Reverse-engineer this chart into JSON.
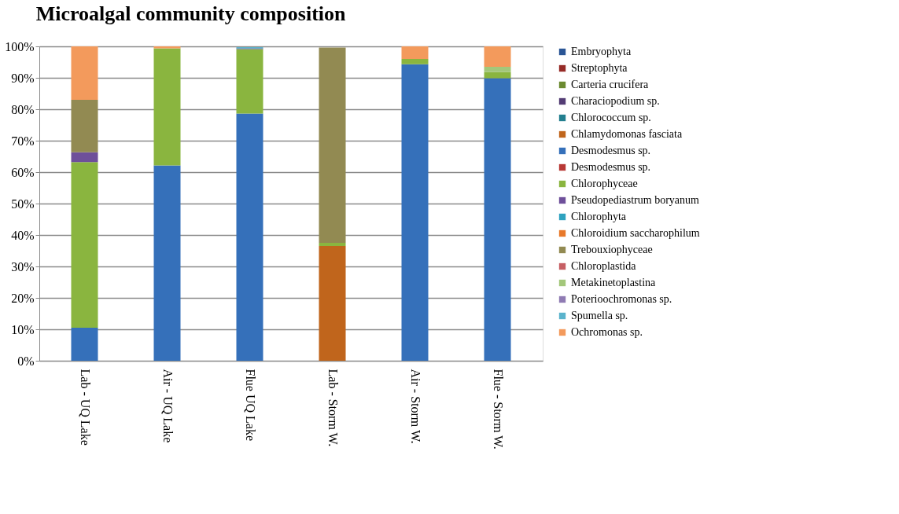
{
  "chart_data": {
    "type": "bar",
    "title": "Microalgal community composition",
    "stacked": true,
    "categories": [
      "Lab - UQ Lake",
      "Air - UQ Lake",
      "Flue UQ Lake",
      "Lab - Storm W.",
      "Air - Storm W.",
      "Flue - Storm W."
    ],
    "ylim": [
      0,
      100
    ],
    "yticks": [
      {
        "value": 0,
        "label": "0%"
      },
      {
        "value": 10,
        "label": "10%"
      },
      {
        "value": 20,
        "label": "20%"
      },
      {
        "value": 30,
        "label": "30%"
      },
      {
        "value": 40,
        "label": "40%"
      },
      {
        "value": 50,
        "label": "50%"
      },
      {
        "value": 60,
        "label": "60%"
      },
      {
        "value": 70,
        "label": "70%"
      },
      {
        "value": 80,
        "label": "80%"
      },
      {
        "value": 90,
        "label": "90%"
      },
      {
        "value": 100,
        "label": "100%"
      }
    ],
    "grid": "y",
    "legend": "right",
    "series": [
      {
        "name": "Embryophyta",
        "color": "#2a5595",
        "values": [
          0,
          0,
          0,
          0,
          0,
          0
        ]
      },
      {
        "name": "Streptophyta",
        "color": "#962b27",
        "values": [
          0,
          0,
          0,
          0,
          0,
          0
        ]
      },
      {
        "name": "Carteria crucifera",
        "color": "#6b8a30",
        "values": [
          0,
          0,
          0,
          0,
          0,
          0
        ]
      },
      {
        "name": "Characiopodium sp.",
        "color": "#533c74",
        "values": [
          0,
          0,
          0,
          0,
          0,
          0
        ]
      },
      {
        "name": "Chlorococcum sp.",
        "color": "#237f8f",
        "values": [
          0,
          0,
          0,
          0,
          0,
          0
        ]
      },
      {
        "name": "Chlamydomonas fasciata",
        "color": "#c0651c",
        "values": [
          0,
          0,
          0,
          36.5,
          0,
          0
        ]
      },
      {
        "name": "Desmodesmus sp.",
        "color": "#3570ba",
        "values": [
          10.5,
          62.1,
          78.6,
          0,
          94.3,
          89.9
        ]
      },
      {
        "name": "Desmodesmus sp.",
        "color": "#b83835",
        "values": [
          0,
          0,
          0,
          0,
          0,
          0
        ]
      },
      {
        "name": "Chlorophyceae",
        "color": "#8ab53f",
        "values": [
          52.7,
          37.3,
          20.5,
          1.0,
          1.7,
          1.9
        ]
      },
      {
        "name": "Pseudopediastrum boryanum",
        "color": "#6e4f9a",
        "values": [
          3.1,
          0,
          0.3,
          0,
          0,
          0
        ]
      },
      {
        "name": "Chlorophyta",
        "color": "#2ea2bf",
        "values": [
          0,
          0,
          0.3,
          0,
          0,
          0
        ]
      },
      {
        "name": "Chloroidium saccharophilum",
        "color": "#e8792a",
        "values": [
          0,
          0,
          0,
          0,
          0,
          0
        ]
      },
      {
        "name": "Trebouxiophyceae",
        "color": "#928a52",
        "values": [
          16.7,
          0,
          null,
          62.1,
          0,
          0
        ]
      },
      {
        "name": "Chloroplastida",
        "color": "#c65f64",
        "values": [
          0,
          0,
          0,
          0,
          0,
          0
        ]
      },
      {
        "name": "Metakinetoplastina",
        "color": "#a3c77a",
        "values": [
          0,
          0,
          0,
          0,
          0,
          1.7
        ]
      },
      {
        "name": "Poterioochromonas sp.",
        "color": "#8f7bb3",
        "values": [
          0,
          0,
          0,
          null,
          0,
          0
        ]
      },
      {
        "name": "Spumella sp.",
        "color": "#5bb3cc",
        "values": [
          0,
          0,
          0,
          0,
          0,
          0
        ]
      },
      {
        "name": "Ochromonas sp.",
        "color": "#f39a5c",
        "values": [
          17.0,
          0.6,
          0,
          0,
          4.0,
          6.5
        ]
      }
    ]
  }
}
